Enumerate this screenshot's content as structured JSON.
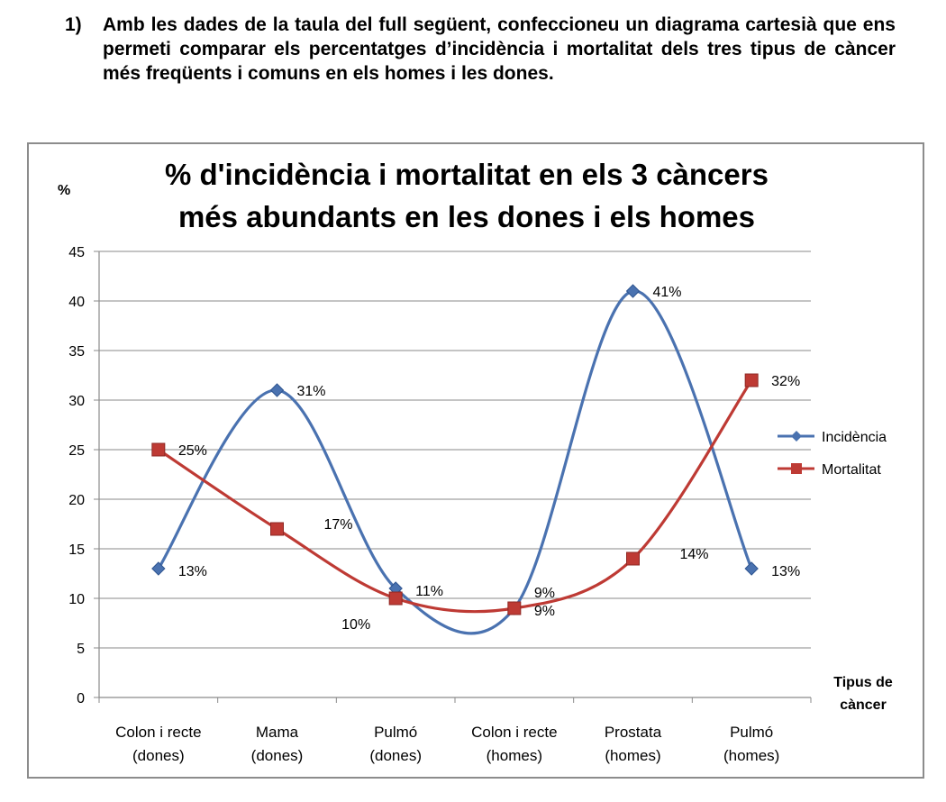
{
  "question": {
    "number": "1)",
    "text": "Amb les dades de la taula del full següent, confeccioneu un diagrama cartesià que ens permeti comparar els percentatges d’incidència i mortalitat dels tres tipus de càncer més freqüents i comuns en els homes i les dones."
  },
  "chart_data": {
    "type": "line",
    "title_line1": "% d'incidència i mortalitat en els 3 càncers",
    "title_line2": "més abundants en les dones i els homes",
    "ylabel": "%",
    "xlabel_line1": "Tipus de",
    "xlabel_line2": "càncer",
    "ylim": [
      0,
      45
    ],
    "yticks": [
      0,
      5,
      10,
      15,
      20,
      25,
      30,
      35,
      40,
      45
    ],
    "categories": [
      [
        "Colon i recte",
        "(dones)"
      ],
      [
        "Mama",
        "(dones)"
      ],
      [
        "Pulmó",
        "(dones)"
      ],
      [
        "Colon i recte",
        "(homes)"
      ],
      [
        "Prostata",
        "(homes)"
      ],
      [
        "Pulmó",
        "(homes)"
      ]
    ],
    "series": [
      {
        "name": "Incidència",
        "color": "#4a72b0",
        "marker": "diamond",
        "values": [
          13,
          31,
          11,
          9,
          41,
          13
        ],
        "labels": [
          "13%",
          "31%",
          "11%",
          "9%",
          "41%",
          "13%"
        ],
        "label_pos": [
          "right-below",
          "right",
          "right-below",
          "right-above",
          "right",
          "right-below"
        ]
      },
      {
        "name": "Mortalitat",
        "color": "#be3a34",
        "marker": "square",
        "values": [
          25,
          17,
          10,
          9,
          14,
          32
        ],
        "labels": [
          "25%",
          "17%",
          "10%",
          "9%",
          "14%",
          "32%"
        ],
        "label_pos": [
          "right",
          "right-far",
          "below",
          "right-below",
          "right-far",
          "right"
        ]
      }
    ],
    "legend": "right"
  }
}
